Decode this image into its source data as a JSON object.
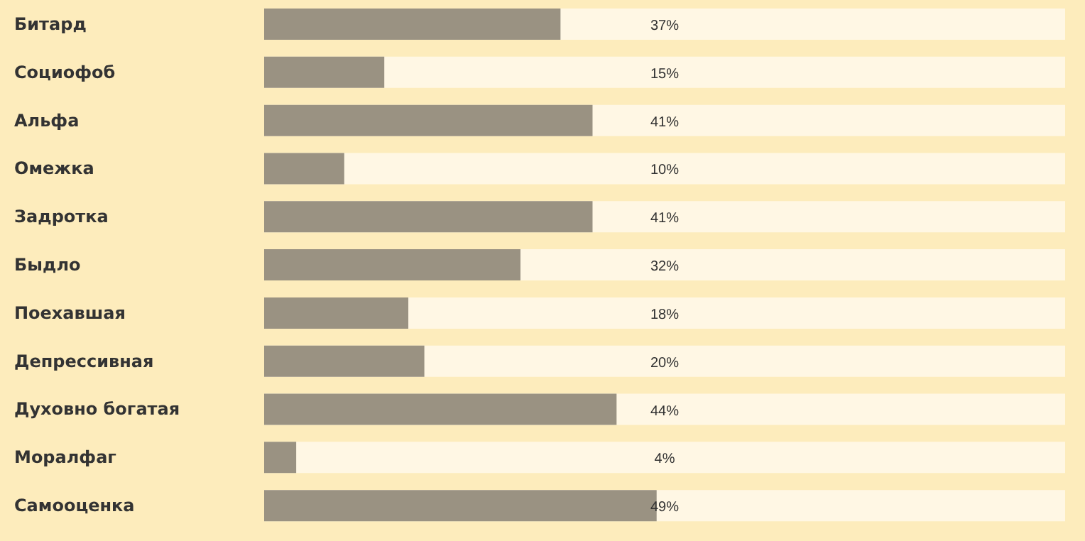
{
  "chart_data": {
    "type": "bar",
    "orientation": "horizontal",
    "categories": [
      "Битард",
      "Социофоб",
      "Альфа",
      "Омежка",
      "Задротка",
      "Быдло",
      "Поехавшая",
      "Депрессивная",
      "Духовно богатая",
      "Моралфаг",
      "Самооценка"
    ],
    "values": [
      37,
      15,
      41,
      10,
      41,
      32,
      18,
      20,
      44,
      4,
      49
    ],
    "value_labels": [
      "37%",
      "15%",
      "41%",
      "10%",
      "41%",
      "32%",
      "18%",
      "20%",
      "44%",
      "4%",
      "49%"
    ],
    "color": "#9a9282",
    "xlim": [
      0,
      100
    ],
    "tick_labels": "y"
  }
}
